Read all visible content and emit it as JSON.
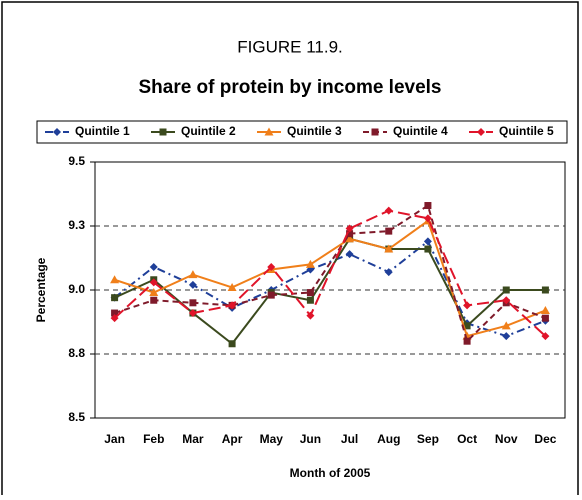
{
  "chart_data": {
    "type": "line",
    "title": "FIGURE 11.9.",
    "subtitle": "Share of protein by income levels",
    "x_label": "Month of 2005",
    "y_label": "Percentage",
    "categories": [
      "Jan",
      "Feb",
      "Mar",
      "Apr",
      "May",
      "Jun",
      "Jul",
      "Aug",
      "Sep",
      "Oct",
      "Nov",
      "Dec"
    ],
    "ylim": [
      8.5,
      9.5
    ],
    "yticks": [
      8.5,
      {
        "value": 8.75,
        "label": "8.8"
      },
      {
        "value": 9,
        "label": "9.0"
      },
      {
        "value": 9.25,
        "label": "9.3"
      },
      9.5
    ],
    "grid": true,
    "legend": "top",
    "series": [
      {
        "name": "Quintile 1",
        "color": "#1f3f99",
        "values": [
          8.97,
          9.09,
          9.02,
          8.93,
          9.0,
          9.08,
          9.14,
          9.07,
          9.19,
          8.87,
          8.82,
          8.88
        ]
      },
      {
        "name": "Quintile 2",
        "color": "#3b4a1e",
        "values": [
          8.97,
          9.04,
          8.91,
          8.79,
          8.99,
          8.96,
          9.2,
          9.16,
          9.16,
          8.86,
          9.0,
          9.0
        ]
      },
      {
        "name": "Quintile 3",
        "color": "#f07f1a",
        "values": [
          9.04,
          8.99,
          9.06,
          9.01,
          9.08,
          9.1,
          9.2,
          9.16,
          9.27,
          8.82,
          8.86,
          8.92
        ]
      },
      {
        "name": "Quintile 4",
        "color": "#7f1a2a",
        "values": [
          8.91,
          8.96,
          8.95,
          8.94,
          8.98,
          8.99,
          9.22,
          9.23,
          9.33,
          8.8,
          8.95,
          8.89
        ]
      },
      {
        "name": "Quintile 5",
        "color": "#e0142a",
        "values": [
          8.89,
          9.03,
          8.91,
          8.94,
          9.09,
          8.9,
          9.24,
          9.31,
          9.28,
          8.94,
          8.96,
          8.82
        ]
      }
    ]
  }
}
